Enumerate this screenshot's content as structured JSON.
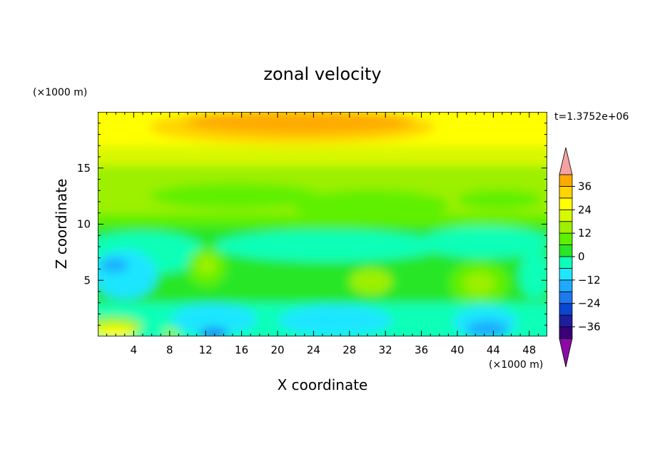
{
  "chart_data": {
    "type": "heatmap",
    "title": "zonal velocity",
    "xlabel": "X coordinate",
    "ylabel": "Z coordinate",
    "x_units": "(×1000 m)",
    "y_units": "(×1000 m)",
    "time_label": "t=1.3752e+06",
    "xlim": [
      0,
      50
    ],
    "ylim": [
      0,
      20
    ],
    "x_ticks": [
      "4",
      "8",
      "12",
      "16",
      "20",
      "24",
      "28",
      "32",
      "36",
      "40",
      "44",
      "48"
    ],
    "y_ticks": [
      "5",
      "10",
      "15"
    ],
    "colorbar": {
      "min": -42,
      "max": 42,
      "step": 6,
      "labels": [
        "36",
        "24",
        "12",
        "0",
        "−12",
        "−24",
        "−36"
      ],
      "colors": [
        "#8b0aa5",
        "#3a007a",
        "#1e1e9c",
        "#0a46d2",
        "#1e78f0",
        "#1eaaff",
        "#1ee6ff",
        "#10ffb8",
        "#28e628",
        "#5ff000",
        "#9cf000",
        "#d8f800",
        "#ffff00",
        "#ffd400",
        "#ffaa00",
        "#ff7a00",
        "#ff4a00",
        "#e60000",
        "#f4a2a2"
      ],
      "extend": "both"
    },
    "grid": false
  }
}
